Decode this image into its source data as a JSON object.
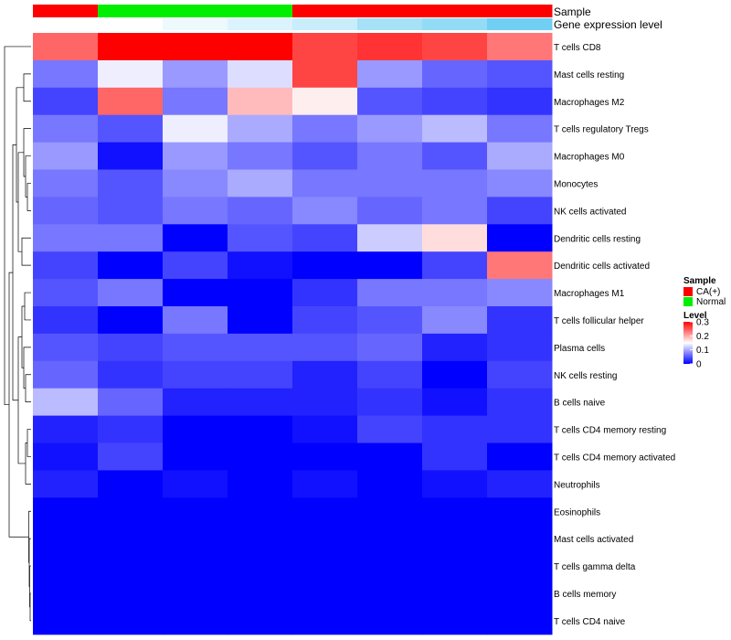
{
  "chart_data": {
    "type": "heatmap",
    "title": "",
    "annotation_labels": {
      "sample": "Sample",
      "gene_expression": "Gene expression level"
    },
    "columns": [
      {
        "sample": "CA(+)",
        "expression": 0.0
      },
      {
        "sample": "Normal",
        "expression": 0.0
      },
      {
        "sample": "Normal",
        "expression": 0.1
      },
      {
        "sample": "Normal",
        "expression": 0.2
      },
      {
        "sample": "CA(+)",
        "expression": 0.3
      },
      {
        "sample": "CA(+)",
        "expression": 0.5
      },
      {
        "sample": "CA(+)",
        "expression": 0.6
      },
      {
        "sample": "CA(+)",
        "expression": 0.8
      }
    ],
    "rows": [
      "T cells CD8",
      "Mast cells resting",
      "Macrophages M2",
      "T cells regulatory  Tregs",
      "Macrophages M0",
      "Monocytes",
      "NK cells activated",
      "Dendritic cells resting",
      "Dendritic cells activated",
      "Macrophages M1",
      "T cells follicular helper",
      "Plasma cells",
      "NK cells resting",
      "B cells naive",
      "T cells CD4 memory resting",
      "T cells CD4 memory activated",
      "Neutrophils",
      "Eosinophils",
      "Mast cells activated",
      "T cells gamma delta",
      "B cells memory",
      "T cells CD4 naive"
    ],
    "values": [
      [
        0.24,
        0.3,
        0.3,
        0.3,
        0.26,
        0.27,
        0.26,
        0.23
      ],
      [
        0.07,
        0.14,
        0.09,
        0.13,
        0.26,
        0.09,
        0.06,
        0.05
      ],
      [
        0.04,
        0.24,
        0.07,
        0.19,
        0.16,
        0.05,
        0.04,
        0.03
      ],
      [
        0.07,
        0.05,
        0.14,
        0.1,
        0.07,
        0.09,
        0.11,
        0.07
      ],
      [
        0.09,
        0.01,
        0.09,
        0.07,
        0.05,
        0.07,
        0.05,
        0.1
      ],
      [
        0.07,
        0.05,
        0.08,
        0.1,
        0.07,
        0.07,
        0.07,
        0.08
      ],
      [
        0.06,
        0.05,
        0.07,
        0.06,
        0.08,
        0.06,
        0.07,
        0.04
      ],
      [
        0.07,
        0.07,
        0.0,
        0.05,
        0.04,
        0.12,
        0.17,
        0.0
      ],
      [
        0.04,
        0.0,
        0.04,
        0.01,
        0.0,
        0.0,
        0.04,
        0.23
      ],
      [
        0.05,
        0.07,
        0.0,
        0.0,
        0.03,
        0.07,
        0.07,
        0.08
      ],
      [
        0.03,
        0.0,
        0.07,
        0.0,
        0.04,
        0.05,
        0.08,
        0.03
      ],
      [
        0.05,
        0.04,
        0.05,
        0.05,
        0.05,
        0.06,
        0.02,
        0.03
      ],
      [
        0.06,
        0.03,
        0.04,
        0.04,
        0.02,
        0.04,
        0.0,
        0.04
      ],
      [
        0.11,
        0.06,
        0.02,
        0.02,
        0.02,
        0.03,
        0.01,
        0.03
      ],
      [
        0.02,
        0.03,
        0.0,
        0.0,
        0.01,
        0.04,
        0.03,
        0.03
      ],
      [
        0.01,
        0.04,
        0.0,
        0.0,
        0.0,
        0.0,
        0.03,
        0.0
      ],
      [
        0.02,
        0.0,
        0.01,
        0.0,
        0.01,
        0.0,
        0.01,
        0.02
      ],
      [
        0.0,
        0.0,
        0.0,
        0.0,
        0.0,
        0.0,
        0.0,
        0.0
      ],
      [
        0.0,
        0.0,
        0.0,
        0.0,
        0.0,
        0.0,
        0.0,
        0.0
      ],
      [
        0.0,
        0.0,
        0.0,
        0.0,
        0.0,
        0.0,
        0.0,
        0.0
      ],
      [
        0.0,
        0.0,
        0.0,
        0.0,
        0.0,
        0.0,
        0.0,
        0.0
      ],
      [
        0.0,
        0.0,
        0.0,
        0.0,
        0.0,
        0.0,
        0.0,
        0.0
      ]
    ],
    "color_scale": {
      "min": 0,
      "max": 0.3,
      "low_color": "#0000ff",
      "mid_color": "#ffffff",
      "high_color": "#ff0000",
      "mid_value": 0.15
    },
    "expression_scale": {
      "low_color": "#ffffff",
      "high_color": "#4cc3ef"
    },
    "sample_colors": {
      "CA(+)": "#ff0000",
      "Normal": "#00ee00"
    },
    "legend": {
      "sample_title": "Sample",
      "sample_entries": [
        "CA(+)",
        "Normal"
      ],
      "level_title": "Level",
      "level_ticks": [
        "0.3",
        "0.2",
        "0.1",
        "0"
      ],
      "level_tick_values": [
        0.3,
        0.2,
        0.1,
        0
      ],
      "position": "right"
    },
    "dendrogram": "rows"
  }
}
